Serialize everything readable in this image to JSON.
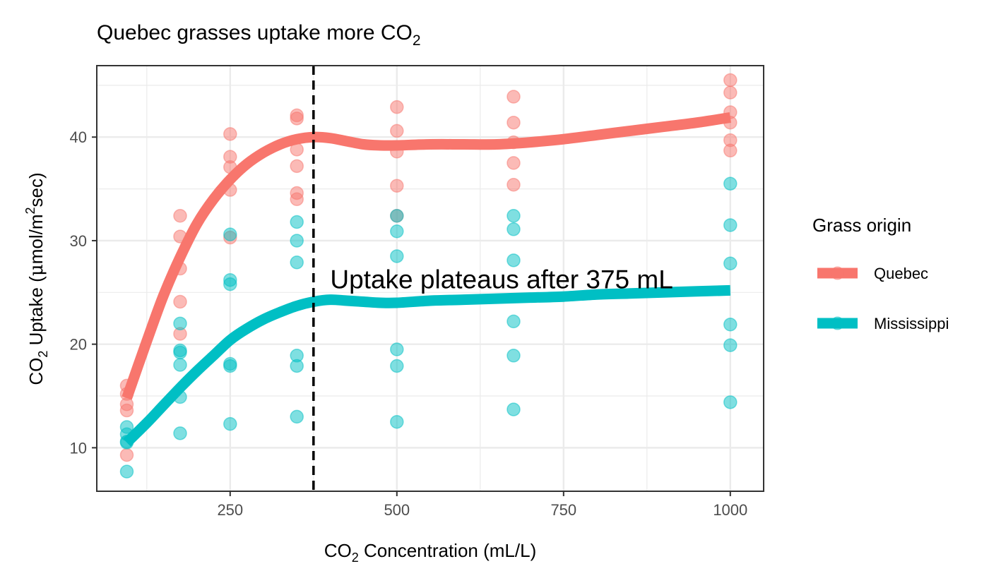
{
  "chart_data": {
    "type": "scatter",
    "title": {
      "prefix": "Quebec grasses uptake more CO",
      "subscript": "2"
    },
    "xlabel": {
      "prefix": "CO",
      "subscript": "2",
      "suffix": " Concentration (mL/L)"
    },
    "ylabel": {
      "prefix": "CO",
      "subscript": "2",
      "middle": " Uptake (",
      "mu": "μ",
      "unit_pre": "mol/m",
      "superscript": "2",
      "unit_post": "sec)"
    },
    "xlim": [
      50,
      1050
    ],
    "ylim": [
      5.8,
      46.9
    ],
    "x_ticks": [
      250,
      500,
      750,
      1000
    ],
    "x_minor": [
      125,
      375,
      625,
      875
    ],
    "y_ticks": [
      10,
      20,
      30,
      40
    ],
    "y_minor": [
      15,
      25,
      35,
      45
    ],
    "grid": true,
    "legend": {
      "title": "Grass origin",
      "position": "right"
    },
    "vline": {
      "x": 375,
      "style": "dashed",
      "color": "#000000"
    },
    "annotation": {
      "text": "Uptake plateaus after 375 mL",
      "x": 400,
      "y": 25.4
    },
    "series": [
      {
        "name": "Quebec",
        "color": "#F8766D",
        "points": [
          [
            95,
            16.0
          ],
          [
            95,
            15.2
          ],
          [
            95,
            14.2
          ],
          [
            95,
            13.6
          ],
          [
            95,
            9.3
          ],
          [
            175,
            32.4
          ],
          [
            175,
            30.4
          ],
          [
            175,
            27.3
          ],
          [
            175,
            24.1
          ],
          [
            175,
            21.0
          ],
          [
            250,
            40.3
          ],
          [
            250,
            38.1
          ],
          [
            250,
            37.1
          ],
          [
            250,
            34.9
          ],
          [
            250,
            30.3
          ],
          [
            350,
            42.1
          ],
          [
            350,
            41.8
          ],
          [
            350,
            38.8
          ],
          [
            350,
            37.2
          ],
          [
            350,
            34.6
          ],
          [
            350,
            34.0
          ],
          [
            500,
            42.9
          ],
          [
            500,
            40.6
          ],
          [
            500,
            38.6
          ],
          [
            500,
            35.3
          ],
          [
            500,
            32.4
          ],
          [
            675,
            43.9
          ],
          [
            675,
            41.4
          ],
          [
            675,
            39.5
          ],
          [
            675,
            37.5
          ],
          [
            675,
            35.4
          ],
          [
            1000,
            45.5
          ],
          [
            1000,
            44.3
          ],
          [
            1000,
            42.4
          ],
          [
            1000,
            41.4
          ],
          [
            1000,
            39.7
          ],
          [
            1000,
            38.7
          ]
        ],
        "smooth": [
          [
            95,
            14.8
          ],
          [
            125,
            20.3
          ],
          [
            150,
            24.7
          ],
          [
            175,
            28.4
          ],
          [
            200,
            31.6
          ],
          [
            225,
            34.0
          ],
          [
            250,
            35.9
          ],
          [
            275,
            37.4
          ],
          [
            300,
            38.5
          ],
          [
            325,
            39.3
          ],
          [
            350,
            39.8
          ],
          [
            375,
            40.0
          ],
          [
            400,
            39.9
          ],
          [
            425,
            39.6
          ],
          [
            450,
            39.3
          ],
          [
            475,
            39.2
          ],
          [
            500,
            39.2
          ],
          [
            550,
            39.3
          ],
          [
            600,
            39.3
          ],
          [
            650,
            39.3
          ],
          [
            700,
            39.5
          ],
          [
            750,
            39.8
          ],
          [
            800,
            40.2
          ],
          [
            850,
            40.6
          ],
          [
            900,
            41.0
          ],
          [
            950,
            41.4
          ],
          [
            1000,
            41.9
          ]
        ]
      },
      {
        "name": "Mississippi",
        "color": "#00BFC4",
        "points": [
          [
            95,
            12.0
          ],
          [
            95,
            11.3
          ],
          [
            95,
            10.6
          ],
          [
            95,
            10.5
          ],
          [
            95,
            7.7
          ],
          [
            175,
            22.0
          ],
          [
            175,
            19.4
          ],
          [
            175,
            19.2
          ],
          [
            175,
            18.0
          ],
          [
            175,
            14.9
          ],
          [
            175,
            11.4
          ],
          [
            250,
            30.6
          ],
          [
            250,
            26.2
          ],
          [
            250,
            25.8
          ],
          [
            250,
            18.1
          ],
          [
            250,
            17.9
          ],
          [
            250,
            12.3
          ],
          [
            350,
            31.8
          ],
          [
            350,
            30.0
          ],
          [
            350,
            27.9
          ],
          [
            350,
            18.9
          ],
          [
            350,
            17.9
          ],
          [
            350,
            13.0
          ],
          [
            500,
            32.4
          ],
          [
            500,
            30.9
          ],
          [
            500,
            28.5
          ],
          [
            500,
            19.5
          ],
          [
            500,
            17.9
          ],
          [
            500,
            12.5
          ],
          [
            675,
            32.4
          ],
          [
            675,
            31.1
          ],
          [
            675,
            28.1
          ],
          [
            675,
            22.2
          ],
          [
            675,
            18.9
          ],
          [
            675,
            13.7
          ],
          [
            1000,
            35.5
          ],
          [
            1000,
            31.5
          ],
          [
            1000,
            27.8
          ],
          [
            1000,
            21.9
          ],
          [
            1000,
            19.9
          ],
          [
            1000,
            14.4
          ]
        ],
        "smooth": [
          [
            95,
            10.5
          ],
          [
            125,
            12.4
          ],
          [
            150,
            14.1
          ],
          [
            175,
            15.8
          ],
          [
            200,
            17.4
          ],
          [
            225,
            18.9
          ],
          [
            250,
            20.4
          ],
          [
            275,
            21.5
          ],
          [
            300,
            22.4
          ],
          [
            325,
            23.1
          ],
          [
            350,
            23.7
          ],
          [
            375,
            24.1
          ],
          [
            400,
            24.3
          ],
          [
            425,
            24.2
          ],
          [
            450,
            24.1
          ],
          [
            475,
            24.0
          ],
          [
            500,
            24.0
          ],
          [
            550,
            24.2
          ],
          [
            600,
            24.3
          ],
          [
            650,
            24.4
          ],
          [
            700,
            24.5
          ],
          [
            750,
            24.6
          ],
          [
            800,
            24.8
          ],
          [
            850,
            24.9
          ],
          [
            900,
            25.0
          ],
          [
            950,
            25.1
          ],
          [
            1000,
            25.2
          ]
        ]
      }
    ]
  }
}
